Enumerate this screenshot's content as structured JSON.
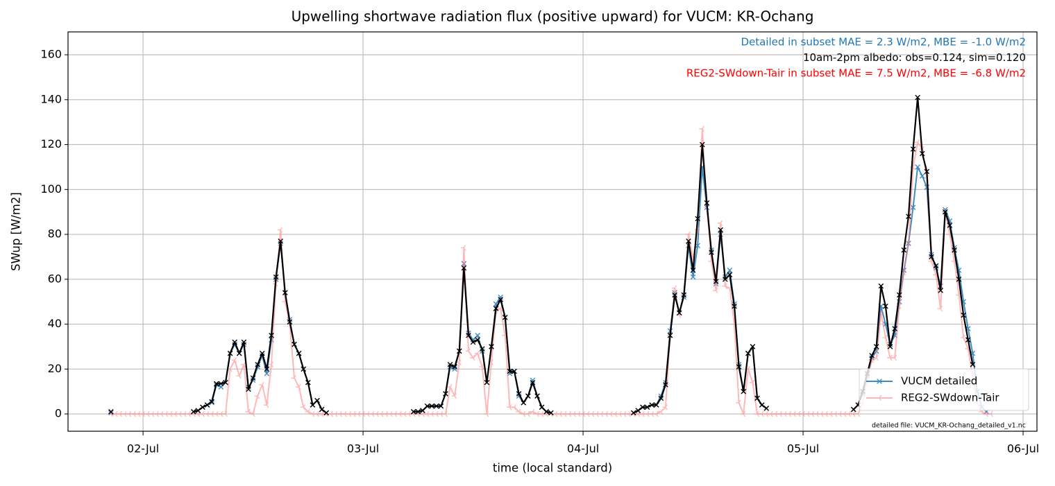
{
  "chart_data": {
    "type": "line",
    "title": "Upwelling shortwave radiation flux (positive upward) for VUCM: KR-Ochang",
    "xlabel": "time (local standard)",
    "ylabel": "SWup [W/m2]",
    "xlim": [
      1.659,
      6.063
    ],
    "xticks": [
      {
        "value": 2,
        "label": "02-Jul"
      },
      {
        "value": 3,
        "label": "03-Jul"
      },
      {
        "value": 4,
        "label": "04-Jul"
      },
      {
        "value": 5,
        "label": "05-Jul"
      },
      {
        "value": 6,
        "label": "06-Jul"
      }
    ],
    "ylim": [
      -7.7,
      170.2
    ],
    "yticks": [
      0,
      20,
      40,
      60,
      80,
      100,
      120,
      140,
      160
    ],
    "grid": true,
    "legend": "lower right",
    "annotations": [
      {
        "text": "Detailed in subset MAE = 2.3 W/m2, MBE = -1.0 W/m2",
        "color": "#1f77b4"
      },
      {
        "text": "10am-2pm albedo: obs=0.124, sim=0.120",
        "color": "#000000"
      },
      {
        "text": "REG2-SWdown-Tair in subset MAE = 7.5 W/m2, MBE = -6.8 W/m2",
        "color": "#ff0000"
      }
    ],
    "footnote": "detailed file: VUCM_KR-Ochang_detailed_v1.nc",
    "x": [
      1.8542,
      1.875,
      1.8958,
      1.9167,
      1.9375,
      1.9583,
      1.9792,
      2,
      2.0208,
      2.0417,
      2.0625,
      2.0833,
      2.1042,
      2.125,
      2.1458,
      2.1667,
      2.1875,
      2.2083,
      2.2292,
      2.25,
      2.2708,
      2.2917,
      2.3125,
      2.3333,
      2.3542,
      2.375,
      2.3958,
      2.4167,
      2.4375,
      2.4583,
      2.4792,
      2.5,
      2.5208,
      2.5417,
      2.5625,
      2.5833,
      2.6042,
      2.625,
      2.6458,
      2.6667,
      2.6875,
      2.7083,
      2.7292,
      2.75,
      2.7708,
      2.7917,
      2.8125,
      2.8333,
      2.8542,
      2.875,
      2.8958,
      2.9167,
      2.9375,
      2.9583,
      2.9792,
      3,
      3.0208,
      3.0417,
      3.0625,
      3.0833,
      3.1042,
      3.125,
      3.1458,
      3.1667,
      3.1875,
      3.2083,
      3.2292,
      3.25,
      3.2708,
      3.2917,
      3.3125,
      3.3333,
      3.3542,
      3.375,
      3.3958,
      3.4167,
      3.4375,
      3.4583,
      3.4792,
      3.5,
      3.5208,
      3.5417,
      3.5625,
      3.5833,
      3.6042,
      3.625,
      3.6458,
      3.6667,
      3.6875,
      3.7083,
      3.7292,
      3.75,
      3.7708,
      3.7917,
      3.8125,
      3.8333,
      3.8542,
      3.875,
      3.8958,
      3.9167,
      3.9375,
      3.9583,
      3.9792,
      4,
      4.0208,
      4.0417,
      4.0625,
      4.0833,
      4.1042,
      4.125,
      4.1458,
      4.1667,
      4.1875,
      4.2083,
      4.2292,
      4.25,
      4.2708,
      4.2917,
      4.3125,
      4.3333,
      4.3542,
      4.375,
      4.3958,
      4.4167,
      4.4375,
      4.4583,
      4.4792,
      4.5,
      4.5208,
      4.5417,
      4.5625,
      4.5833,
      4.6042,
      4.625,
      4.6458,
      4.6667,
      4.6875,
      4.7083,
      4.7292,
      4.75,
      4.7708,
      4.7917,
      4.8125,
      4.8333,
      4.8542,
      4.875,
      4.8958,
      4.9167,
      4.9375,
      4.9583,
      4.9792,
      5,
      5.0208,
      5.0417,
      5.0625,
      5.0833,
      5.1042,
      5.125,
      5.1458,
      5.1667,
      5.1875,
      5.2083,
      5.2292,
      5.25,
      5.2708,
      5.2917,
      5.3125,
      5.3333,
      5.3542,
      5.375,
      5.3958,
      5.4167,
      5.4375,
      5.4583,
      5.4792,
      5.5,
      5.5208,
      5.5417,
      5.5625,
      5.5833,
      5.6042,
      5.625,
      5.6458,
      5.6667,
      5.6875,
      5.7083,
      5.7292,
      5.75,
      5.7708,
      5.7917,
      5.8125,
      5.8333,
      5.8542
    ],
    "series": [
      {
        "name": "VUCM detailed",
        "color": "#1f77b4",
        "marker": "x",
        "values": [
          0.5,
          null,
          null,
          null,
          null,
          null,
          null,
          null,
          null,
          null,
          null,
          null,
          null,
          null,
          null,
          null,
          null,
          null,
          1,
          1.5,
          3,
          4,
          5,
          13,
          12,
          14,
          27,
          31,
          27,
          31,
          12,
          15,
          21,
          26,
          18,
          33,
          60,
          76,
          54,
          42,
          31,
          27,
          20,
          14,
          4,
          6,
          2,
          0.5,
          null,
          null,
          null,
          null,
          null,
          null,
          null,
          null,
          null,
          null,
          null,
          null,
          null,
          null,
          null,
          null,
          null,
          null,
          1,
          1,
          1.5,
          3.5,
          3.5,
          3.5,
          3.5,
          9,
          21,
          20,
          28,
          67,
          36,
          33,
          35,
          28,
          14,
          30,
          49,
          52,
          43,
          18,
          19,
          8,
          5,
          8,
          15,
          8,
          3,
          1,
          0.5,
          null,
          null,
          null,
          null,
          null,
          null,
          null,
          null,
          null,
          null,
          null,
          null,
          null,
          null,
          null,
          null,
          null,
          0.5,
          1.5,
          3,
          3,
          4,
          4,
          8,
          14,
          37,
          54,
          45,
          52,
          75,
          61,
          75,
          110,
          92,
          73,
          58,
          80,
          61,
          64,
          49,
          22,
          10,
          27,
          30,
          7,
          4,
          2.5,
          null,
          null,
          null,
          null,
          null,
          null,
          null,
          null,
          null,
          null,
          null,
          null,
          null,
          null,
          null,
          null,
          null,
          null,
          2,
          4,
          9,
          17,
          25,
          28,
          48,
          40,
          31,
          35,
          50,
          64,
          76,
          92,
          110,
          106,
          101,
          71,
          65,
          57,
          91,
          86,
          74,
          64,
          50,
          38,
          27,
          10,
          3,
          1,
          null
        ]
      },
      {
        "name": "REG2-SWdown-Tair",
        "color": "#ff8a8a",
        "marker": "tri-left",
        "values": [
          0,
          0,
          0,
          0,
          0,
          0,
          0,
          0,
          0,
          0,
          0,
          0,
          0,
          0,
          0,
          0,
          0,
          0,
          0,
          0,
          0,
          0,
          0,
          0,
          0,
          0,
          20,
          24,
          17,
          22,
          1,
          0,
          8,
          13,
          4,
          22,
          58,
          82,
          50,
          40,
          16,
          12,
          3,
          1,
          0,
          0,
          0,
          0,
          0,
          0,
          0,
          0,
          0,
          0,
          0,
          0,
          0,
          0,
          0,
          0,
          0,
          0,
          0,
          0,
          0,
          0,
          0,
          0,
          0,
          0,
          0,
          0,
          0,
          0,
          12,
          8,
          23,
          74,
          28,
          25,
          27,
          21,
          0,
          23,
          46,
          47,
          35,
          3,
          3,
          1,
          0,
          0,
          1,
          0,
          0,
          0,
          0,
          0,
          0,
          0,
          0,
          0,
          0,
          0,
          0,
          0,
          0,
          0,
          0,
          0,
          0,
          0,
          0,
          0,
          0,
          0,
          0,
          0,
          0,
          0,
          1,
          3,
          35,
          56,
          44,
          53,
          80,
          69,
          82,
          127,
          92,
          68,
          55,
          85,
          57,
          56,
          40,
          5,
          0,
          20,
          14,
          0,
          0,
          0,
          0,
          0,
          0,
          0,
          0,
          0,
          0,
          0,
          0,
          0,
          0,
          0,
          0,
          0,
          0,
          0,
          0,
          0,
          0,
          0,
          5,
          15,
          24,
          25,
          45,
          34,
          25,
          25,
          48,
          63,
          76,
          110,
          121,
          118,
          105,
          68,
          62,
          47,
          90,
          80,
          68,
          53,
          34,
          29,
          17,
          5,
          1,
          0,
          0
        ]
      },
      {
        "color": "#000000",
        "marker": "x",
        "values": [
          1,
          null,
          null,
          null,
          null,
          null,
          null,
          null,
          null,
          null,
          null,
          null,
          null,
          null,
          null,
          null,
          null,
          null,
          1,
          1.5,
          3,
          4,
          5.5,
          13.5,
          13.5,
          14,
          27,
          32,
          27,
          32,
          11,
          16,
          22,
          27,
          20,
          35,
          61,
          77,
          54,
          41,
          31,
          27,
          20,
          14,
          4,
          6,
          2,
          0.5,
          null,
          null,
          null,
          null,
          null,
          null,
          null,
          null,
          null,
          null,
          null,
          null,
          null,
          null,
          null,
          null,
          null,
          null,
          1,
          1,
          1.5,
          3.5,
          3.5,
          3.5,
          3.5,
          9,
          22,
          21,
          28,
          65,
          35,
          32,
          33,
          29,
          14,
          30,
          47,
          51,
          43,
          19,
          19,
          9,
          5,
          8,
          14,
          8,
          3,
          1,
          0.5,
          null,
          null,
          null,
          null,
          null,
          null,
          null,
          null,
          null,
          null,
          null,
          null,
          null,
          null,
          null,
          null,
          null,
          0.5,
          1.5,
          3,
          3,
          4,
          4,
          7,
          13,
          35,
          53,
          45,
          53,
          77,
          64,
          87,
          120,
          94,
          72,
          59,
          82,
          60,
          62,
          48,
          21,
          10,
          27,
          30,
          7,
          4,
          2.5,
          null,
          null,
          null,
          null,
          null,
          null,
          null,
          null,
          null,
          null,
          null,
          null,
          null,
          null,
          null,
          null,
          null,
          null,
          2,
          4,
          10,
          18,
          26,
          30,
          57,
          48,
          30,
          38,
          53,
          73,
          88,
          118,
          141,
          116,
          108,
          70,
          66,
          55,
          90,
          84,
          73,
          60,
          44,
          33,
          22,
          null,
          null,
          null,
          null
        ]
      }
    ]
  }
}
